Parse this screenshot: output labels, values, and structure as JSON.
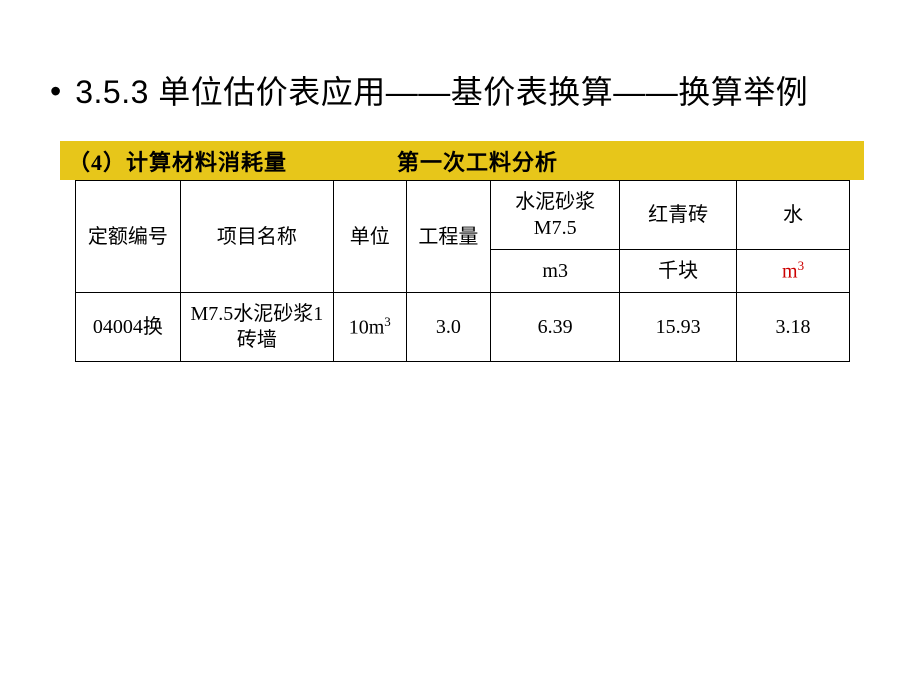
{
  "heading": {
    "bullet": "•",
    "text": "3.5.3 单位估价表应用——基价表换算——换算举例"
  },
  "section": {
    "left": "（4）计算材料消耗量",
    "right": "第一次工料分析"
  },
  "table": {
    "headers": {
      "c1": "定额编号",
      "c2": "项目名称",
      "c3": "单位",
      "c4": "工程量",
      "c5_top": "水泥砂浆M7.5",
      "c6_top": "红青砖",
      "c7_top": "水",
      "c5_unit": "m3",
      "c6_unit": "千块",
      "c7_unit": "m",
      "c7_unit_sup": "3"
    },
    "row": {
      "c1": "04004换",
      "c2": "M7.5水泥砂浆1砖墙",
      "c3_pre": "10m",
      "c3_sup": "3",
      "c4": "3.0",
      "c5": "6.39",
      "c6": "15.93",
      "c7": "3.18"
    }
  }
}
